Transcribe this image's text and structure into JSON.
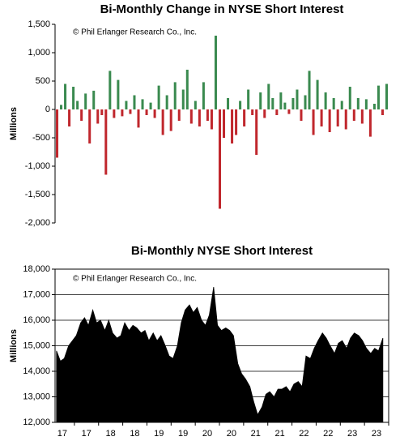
{
  "chart_data": [
    {
      "type": "bar",
      "title": "Bi-Monthly Change in NYSE Short Interest",
      "y_label": "Millions",
      "annotation": "© Phil Erlanger Research Co., Inc.",
      "positive_color": "#3a8a4f",
      "negative_color": "#c0272d",
      "values": [
        -850,
        80,
        450,
        -300,
        400,
        150,
        -200,
        280,
        -600,
        330,
        -250,
        -100,
        -1150,
        680,
        -150,
        520,
        -120,
        150,
        -80,
        250,
        -320,
        180,
        -100,
        120,
        -150,
        420,
        -450,
        250,
        -380,
        480,
        -200,
        350,
        700,
        -250,
        150,
        -300,
        480,
        -200,
        -350,
        1300,
        -1750,
        -500,
        200,
        -600,
        -450,
        150,
        -300,
        350,
        -100,
        -800,
        300,
        -150,
        450,
        200,
        -100,
        300,
        120,
        -80,
        200,
        350,
        -200,
        250,
        680,
        -450,
        520,
        -300,
        300,
        -400,
        200,
        -300,
        150,
        -350,
        400,
        -200,
        200,
        -250,
        180,
        -480,
        100,
        420,
        -100,
        450
      ],
      "ylim": [
        -2000,
        1500
      ],
      "yticks": [
        {
          "value": -2000,
          "label": "-2,000"
        },
        {
          "value": -1500,
          "label": "-1,500"
        },
        {
          "value": -1000,
          "label": "-1,000"
        },
        -500,
        0,
        500,
        {
          "value": 1000,
          "label": "1,000"
        },
        {
          "value": 1500,
          "label": "1,500"
        }
      ],
      "grid": false
    },
    {
      "type": "area",
      "title": "Bi-Monthly NYSE Short Interest",
      "y_label": "Millions",
      "annotation": "© Phil Erlanger Research Co., Inc.",
      "color": "#000000",
      "x": [
        2016.63,
        2016.71,
        2016.79,
        2016.88,
        2016.96,
        2017.04,
        2017.13,
        2017.21,
        2017.29,
        2017.38,
        2017.46,
        2017.54,
        2017.63,
        2017.71,
        2017.79,
        2017.88,
        2017.96,
        2018.04,
        2018.13,
        2018.21,
        2018.29,
        2018.38,
        2018.46,
        2018.54,
        2018.63,
        2018.71,
        2018.79,
        2018.88,
        2018.96,
        2019.04,
        2019.13,
        2019.21,
        2019.29,
        2019.38,
        2019.46,
        2019.54,
        2019.63,
        2019.71,
        2019.79,
        2019.88,
        2019.96,
        2020.04,
        2020.13,
        2020.21,
        2020.29,
        2020.38,
        2020.46,
        2020.54,
        2020.63,
        2020.71,
        2020.79,
        2020.88,
        2020.96,
        2021.04,
        2021.13,
        2021.21,
        2021.29,
        2021.38,
        2021.46,
        2021.54,
        2021.63,
        2021.71,
        2021.79,
        2021.88,
        2021.96,
        2022.04,
        2022.13,
        2022.21,
        2022.29,
        2022.38,
        2022.46,
        2022.54,
        2022.63,
        2022.71,
        2022.79,
        2022.88,
        2022.96,
        2023.04,
        2023.13,
        2023.21,
        2023.29,
        2023.38
      ],
      "values": [
        14800,
        14400,
        14500,
        15000,
        15200,
        15400,
        15900,
        16100,
        15800,
        16400,
        15900,
        16000,
        15600,
        16000,
        15500,
        15300,
        15400,
        15900,
        15600,
        15800,
        15700,
        15500,
        15600,
        15200,
        15500,
        15200,
        15400,
        15000,
        14600,
        14500,
        15000,
        15900,
        16400,
        16600,
        16300,
        16500,
        16000,
        15800,
        16200,
        17300,
        15800,
        15600,
        15700,
        15600,
        15400,
        14300,
        13900,
        13700,
        13400,
        12800,
        12300,
        12600,
        13100,
        13200,
        13000,
        13300,
        13300,
        13400,
        13200,
        13500,
        13600,
        13400,
        14600,
        14500,
        14900,
        15200,
        15500,
        15300,
        15000,
        14700,
        15100,
        15200,
        14900,
        15300,
        15500,
        15400,
        15200,
        14900,
        14700,
        14900,
        14800,
        15300
      ],
      "xlim": [
        2016.6,
        2023.5
      ],
      "xticks": [
        {
          "value": 2017,
          "label": "17"
        },
        {
          "value": 2017.5,
          "label": "17"
        },
        {
          "value": 2018,
          "label": "18"
        },
        {
          "value": 2018.5,
          "label": "18"
        },
        {
          "value": 2019,
          "label": "19"
        },
        {
          "value": 2019.5,
          "label": "19"
        },
        {
          "value": 2020,
          "label": "20"
        },
        {
          "value": 2020.5,
          "label": "20"
        },
        {
          "value": 2021,
          "label": "21"
        },
        {
          "value": 2021.5,
          "label": "21"
        },
        {
          "value": 2022,
          "label": "22"
        },
        {
          "value": 2022.5,
          "label": "22"
        },
        {
          "value": 2023,
          "label": "23"
        },
        {
          "value": 2023.5,
          "label": "23"
        }
      ],
      "ylim": [
        12000,
        18000
      ],
      "yticks": [
        {
          "value": 12000,
          "label": "12,000"
        },
        {
          "value": 13000,
          "label": "13,000"
        },
        {
          "value": 14000,
          "label": "14,000"
        },
        {
          "value": 15000,
          "label": "15,000"
        },
        {
          "value": 16000,
          "label": "16,000"
        },
        {
          "value": 17000,
          "label": "17,000"
        },
        {
          "value": 18000,
          "label": "18,000"
        }
      ],
      "grid": true
    }
  ]
}
